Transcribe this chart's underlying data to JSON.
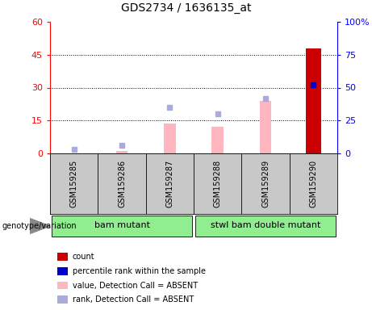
{
  "title": "GDS2734 / 1636135_at",
  "samples": [
    "GSM159285",
    "GSM159286",
    "GSM159287",
    "GSM159288",
    "GSM159289",
    "GSM159290"
  ],
  "count_values": [
    0,
    0,
    0,
    0,
    0,
    48
  ],
  "percentile_rank": [
    0,
    0,
    0,
    0,
    0,
    52
  ],
  "value_absent": [
    0,
    1.0,
    13.5,
    12.0,
    24.0,
    0
  ],
  "rank_absent": [
    2.0,
    3.5,
    21.0,
    18.0,
    25.0,
    0
  ],
  "left_ylim": [
    0,
    60
  ],
  "right_ylim": [
    0,
    100
  ],
  "left_yticks": [
    0,
    15,
    30,
    45,
    60
  ],
  "right_yticks": [
    0,
    25,
    50,
    75,
    100
  ],
  "left_yticklabels": [
    "0",
    "15",
    "30",
    "45",
    "60"
  ],
  "right_yticklabels": [
    "0",
    "25",
    "50",
    "75",
    "100%"
  ],
  "groups": [
    {
      "label": "bam mutant",
      "start": 0,
      "end": 3,
      "color": "#90EE90"
    },
    {
      "label": "stwl bam double mutant",
      "start": 3,
      "end": 6,
      "color": "#90EE90"
    }
  ],
  "bar_width": 0.45,
  "count_color": "#CC0000",
  "rank_color": "#0000CC",
  "value_absent_color": "#FFB6C1",
  "rank_absent_color": "#AAAADD",
  "sample_bg_color": "#C8C8C8",
  "plot_bg": "#FFFFFF",
  "genotype_label": "genotype/variation",
  "legend_items": [
    {
      "label": "count",
      "color": "#CC0000"
    },
    {
      "label": "percentile rank within the sample",
      "color": "#0000CC"
    },
    {
      "label": "value, Detection Call = ABSENT",
      "color": "#FFB6C1"
    },
    {
      "label": "rank, Detection Call = ABSENT",
      "color": "#AAAADD"
    }
  ],
  "title_fontsize": 10,
  "axis_fontsize": 8,
  "sample_fontsize": 7,
  "group_fontsize": 8,
  "legend_fontsize": 7,
  "genotype_fontsize": 7
}
